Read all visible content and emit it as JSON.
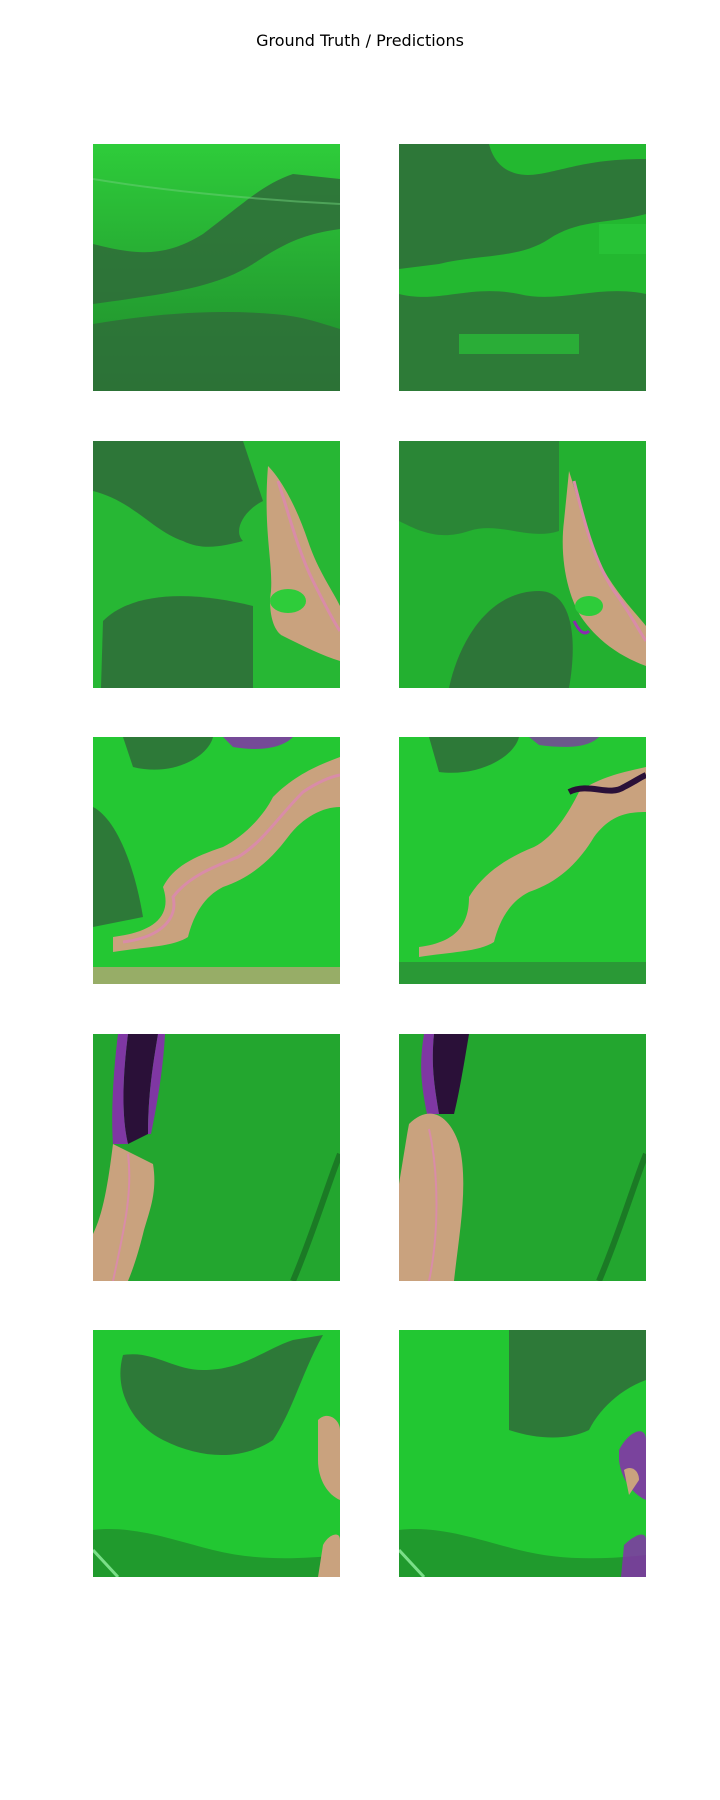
{
  "figure": {
    "title": "Ground Truth / Predictions"
  },
  "colors": {
    "vegetation_bright": "#22cc33",
    "vegetation_dark": "#2f6b3a",
    "vegetation_mid": "#1f9a2c",
    "river_tan": "#c9a27e",
    "river_pink": "#d98ca8",
    "water_purple": "#8a2bb0",
    "water_dark": "#2a1038"
  },
  "panels": [
    {
      "row": 1,
      "column": "ground-truth"
    },
    {
      "row": 1,
      "column": "prediction"
    },
    {
      "row": 2,
      "column": "ground-truth"
    },
    {
      "row": 2,
      "column": "prediction"
    },
    {
      "row": 3,
      "column": "ground-truth"
    },
    {
      "row": 3,
      "column": "prediction"
    },
    {
      "row": 4,
      "column": "ground-truth"
    },
    {
      "row": 4,
      "column": "prediction"
    },
    {
      "row": 5,
      "column": "ground-truth"
    },
    {
      "row": 5,
      "column": "prediction"
    }
  ]
}
